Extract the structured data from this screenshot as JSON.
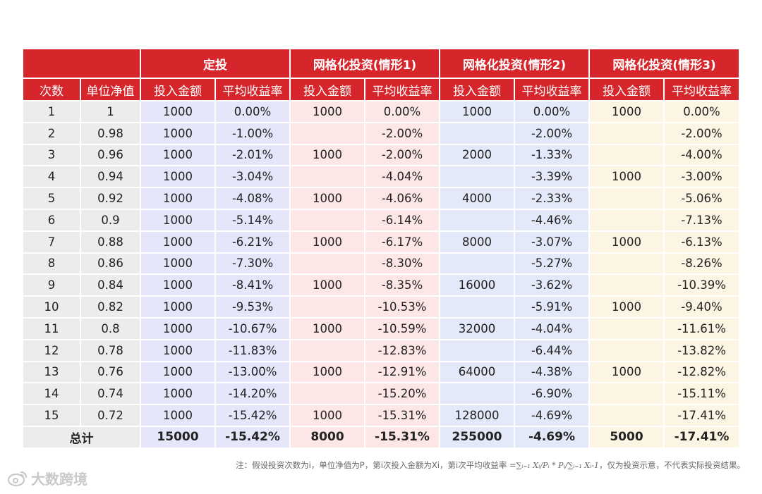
{
  "header": {
    "groups": [
      "定投",
      "网格化投资(情形1)",
      "网格化投资(情形2)",
      "网格化投资(情形3)"
    ],
    "columns": [
      "次数",
      "单位净值",
      "投入金额",
      "平均收益率",
      "投入金额",
      "平均收益率",
      "投入金额",
      "平均收益率",
      "投入金额",
      "平均收益率"
    ]
  },
  "rows": [
    [
      "1",
      "1",
      "1000",
      "0.00%",
      "1000",
      "0.00%",
      "1000",
      "0.00%",
      "1000",
      "0.00%"
    ],
    [
      "2",
      "0.98",
      "1000",
      "-1.00%",
      "",
      "-2.00%",
      "",
      "-2.00%",
      "",
      "-2.00%"
    ],
    [
      "3",
      "0.96",
      "1000",
      "-2.01%",
      "1000",
      "-2.00%",
      "2000",
      "-1.33%",
      "",
      "-4.00%"
    ],
    [
      "4",
      "0.94",
      "1000",
      "-3.04%",
      "",
      "-4.04%",
      "",
      "-3.39%",
      "1000",
      "-3.00%"
    ],
    [
      "5",
      "0.92",
      "1000",
      "-4.08%",
      "1000",
      "-4.06%",
      "4000",
      "-2.33%",
      "",
      "-5.06%"
    ],
    [
      "6",
      "0.9",
      "1000",
      "-5.14%",
      "",
      "-6.14%",
      "",
      "-4.46%",
      "",
      "-7.13%"
    ],
    [
      "7",
      "0.88",
      "1000",
      "-6.21%",
      "1000",
      "-6.17%",
      "8000",
      "-3.07%",
      "1000",
      "-6.13%"
    ],
    [
      "8",
      "0.86",
      "1000",
      "-7.30%",
      "",
      "-8.30%",
      "",
      "-5.27%",
      "",
      "-8.26%"
    ],
    [
      "9",
      "0.84",
      "1000",
      "-8.41%",
      "1000",
      "-8.35%",
      "16000",
      "-3.62%",
      "",
      "-10.39%"
    ],
    [
      "10",
      "0.82",
      "1000",
      "-9.53%",
      "",
      "-10.53%",
      "",
      "-5.91%",
      "1000",
      "-9.40%"
    ],
    [
      "11",
      "0.8",
      "1000",
      "-10.67%",
      "1000",
      "-10.59%",
      "32000",
      "-4.04%",
      "",
      "-11.61%"
    ],
    [
      "12",
      "0.78",
      "1000",
      "-11.83%",
      "",
      "-12.83%",
      "",
      "-6.44%",
      "",
      "-13.82%"
    ],
    [
      "13",
      "0.76",
      "1000",
      "-13.00%",
      "1000",
      "-12.91%",
      "64000",
      "-4.38%",
      "1000",
      "-12.82%"
    ],
    [
      "14",
      "0.74",
      "1000",
      "-14.20%",
      "",
      "-15.20%",
      "",
      "-6.90%",
      "",
      "-15.11%"
    ],
    [
      "15",
      "0.72",
      "1000",
      "-15.42%",
      "1000",
      "-15.31%",
      "128000",
      "-4.69%",
      "",
      "-17.41%"
    ]
  ],
  "total": {
    "label": "总计",
    "values": [
      "15000",
      "-15.42%",
      "8000",
      "-15.31%",
      "255000",
      "-4.69%",
      "5000",
      "-17.41%"
    ]
  },
  "note": {
    "prefix": "注：假设投资次数为i，单位净值为P，第i次投入金额为Xi，第i次平均收益率 =",
    "formula": "∑ᵢ₌₁ Xᵢ/Pᵢ * Pᵢ/∑ᵢ₌₁ Xᵢ-1",
    "suffix": "，仅为投资示意，不代表实际投资结果。"
  },
  "watermark": {
    "text": "大数跨境",
    "icon": "weibo-logo-icon"
  },
  "colors": {
    "header_red": "#d7262b",
    "gray": "#ececec",
    "blue1": "#e6e6fb",
    "pink": "#fde6e6",
    "blue2": "#e4e9fa",
    "cream": "#fdf5e3"
  }
}
